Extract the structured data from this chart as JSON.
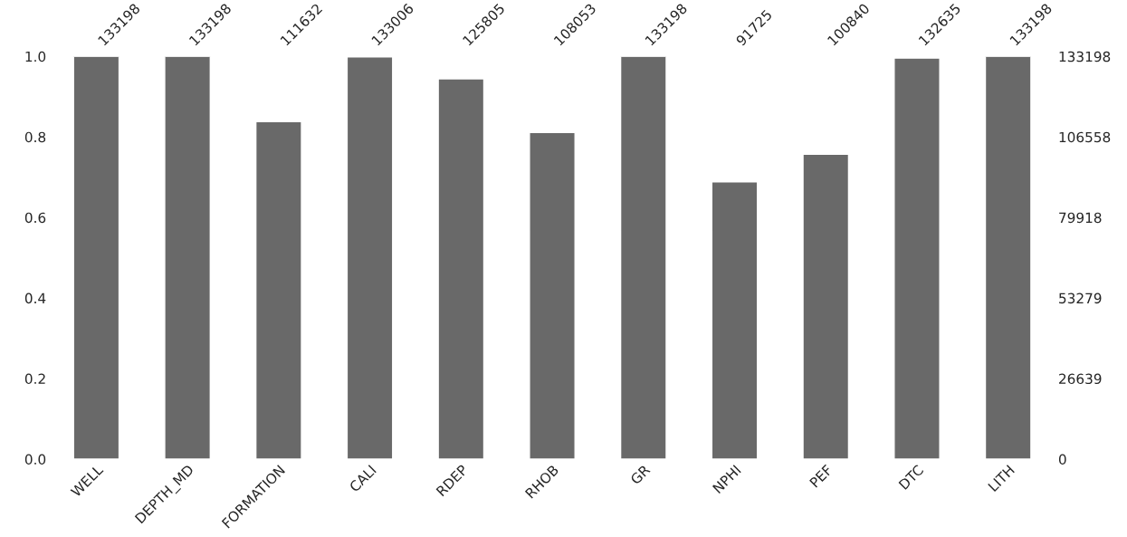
{
  "chart_data": {
    "type": "bar",
    "categories": [
      "WELL",
      "DEPTH_MD",
      "FORMATION",
      "CALI",
      "RDEP",
      "RHOB",
      "GR",
      "NPHI",
      "PEF",
      "DTC",
      "LITH"
    ],
    "series": [
      {
        "color": "#696969",
        "axis": "y2",
        "values": [
          133198,
          133198,
          111632,
          133006,
          125805,
          108053,
          133198,
          91725,
          100840,
          132635,
          133198
        ]
      }
    ],
    "data_labels": true,
    "ylim": [
      0,
      1.0
    ],
    "yticks": [
      {
        "value": 0,
        "label": "0.0"
      },
      0.2,
      0.4,
      0.6,
      0.8,
      {
        "value": 1,
        "label": "1.0"
      }
    ],
    "y2lim": [
      0,
      133198
    ],
    "y2ticks": [
      0,
      26639,
      53279,
      79918,
      106558,
      133198
    ],
    "grid": false,
    "legend": false
  }
}
